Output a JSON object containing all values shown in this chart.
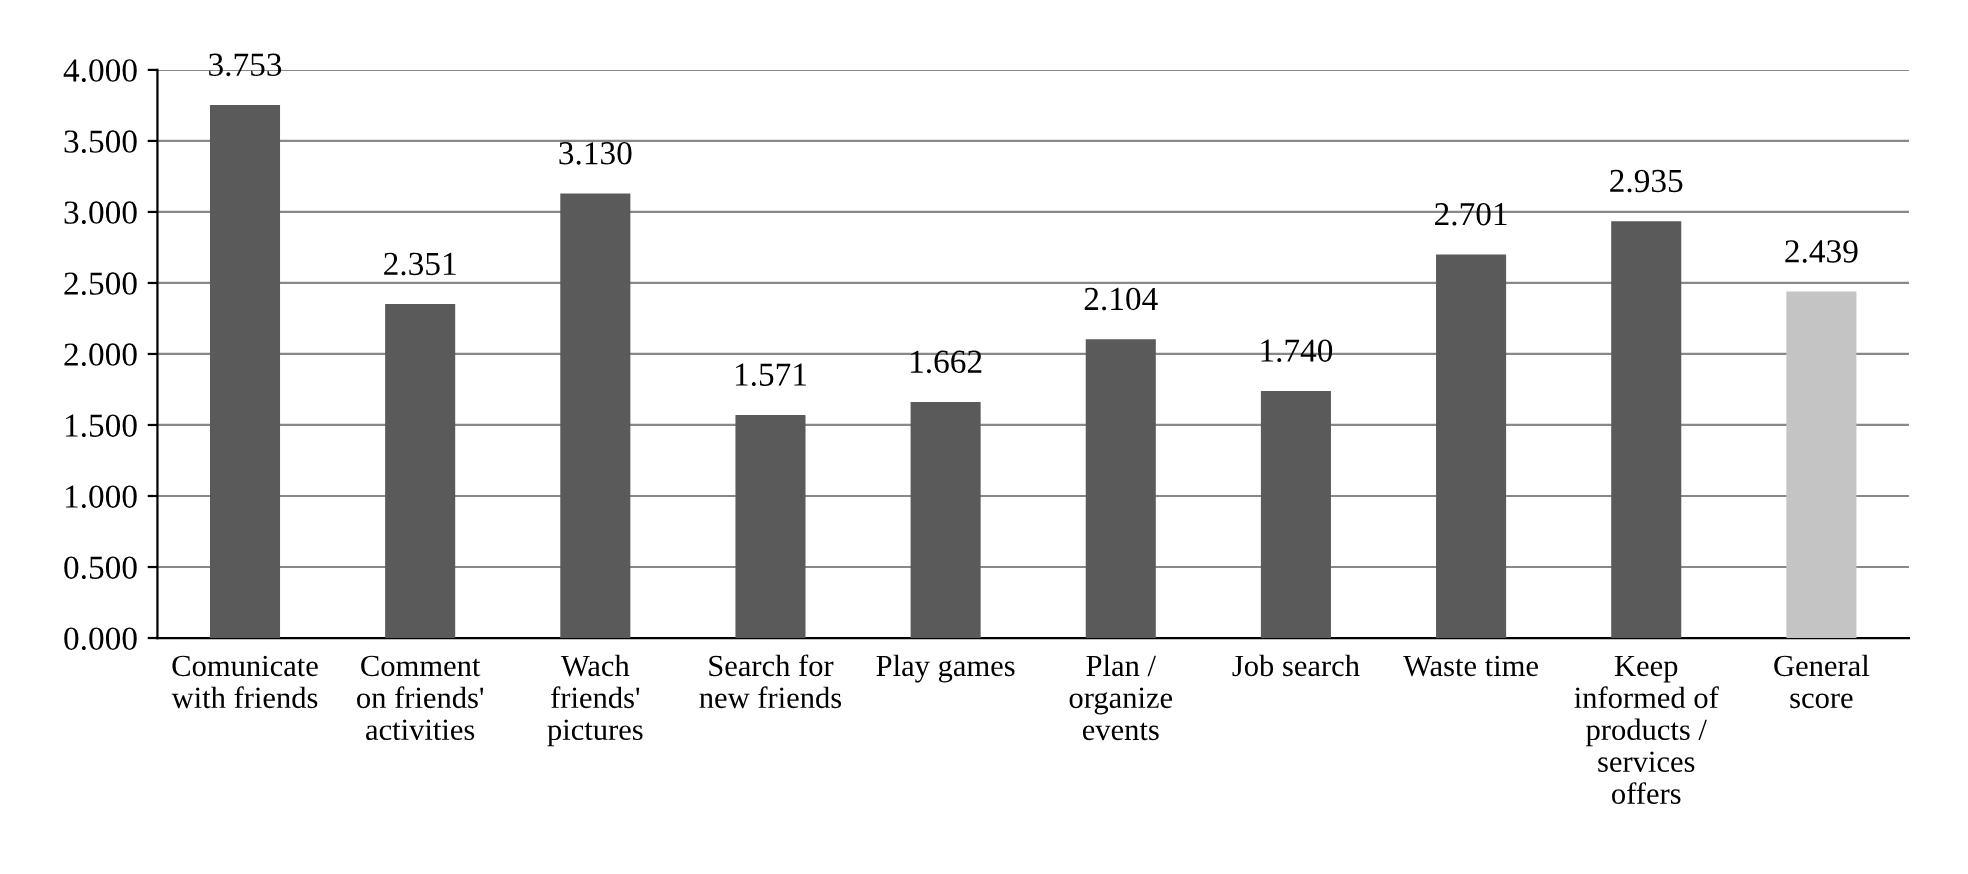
{
  "chart_data": {
    "type": "bar",
    "categories": [
      "Comunicate\nwith friends",
      "Comment\non friends'\nactivities",
      "Wach\nfriends'\npictures",
      "Search for\nnew friends",
      "Play games",
      "Plan /\norganize\nevents",
      "Job search",
      "Waste time",
      "Keep\ninformed of\nproducts /\nservices\noffers",
      "General\nscore"
    ],
    "values": [
      3.753,
      2.351,
      3.13,
      1.571,
      1.662,
      2.104,
      1.74,
      2.701,
      2.935,
      2.439
    ],
    "value_labels": [
      "3.753",
      "2.351",
      "3.130",
      "1.571",
      "1.662",
      "2.104",
      "1.740",
      "2.701",
      "2.935",
      "2.439"
    ],
    "colors": [
      "#5a5a5a",
      "#5a5a5a",
      "#5a5a5a",
      "#5a5a5a",
      "#5a5a5a",
      "#5a5a5a",
      "#5a5a5a",
      "#5a5a5a",
      "#5a5a5a",
      "#c4c4c4"
    ],
    "ylim": [
      0,
      4
    ],
    "yticks": [
      {
        "value": 0,
        "label": "0.000"
      },
      {
        "value": 0.5,
        "label": "0.500"
      },
      {
        "value": 1,
        "label": "1.000"
      },
      {
        "value": 1.5,
        "label": "1.500"
      },
      {
        "value": 2,
        "label": "2.000"
      },
      {
        "value": 2.5,
        "label": "2.500"
      },
      {
        "value": 3,
        "label": "3.000"
      },
      {
        "value": 3.5,
        "label": "3.500"
      },
      {
        "value": 4,
        "label": "4.000"
      }
    ],
    "grid": "y"
  }
}
